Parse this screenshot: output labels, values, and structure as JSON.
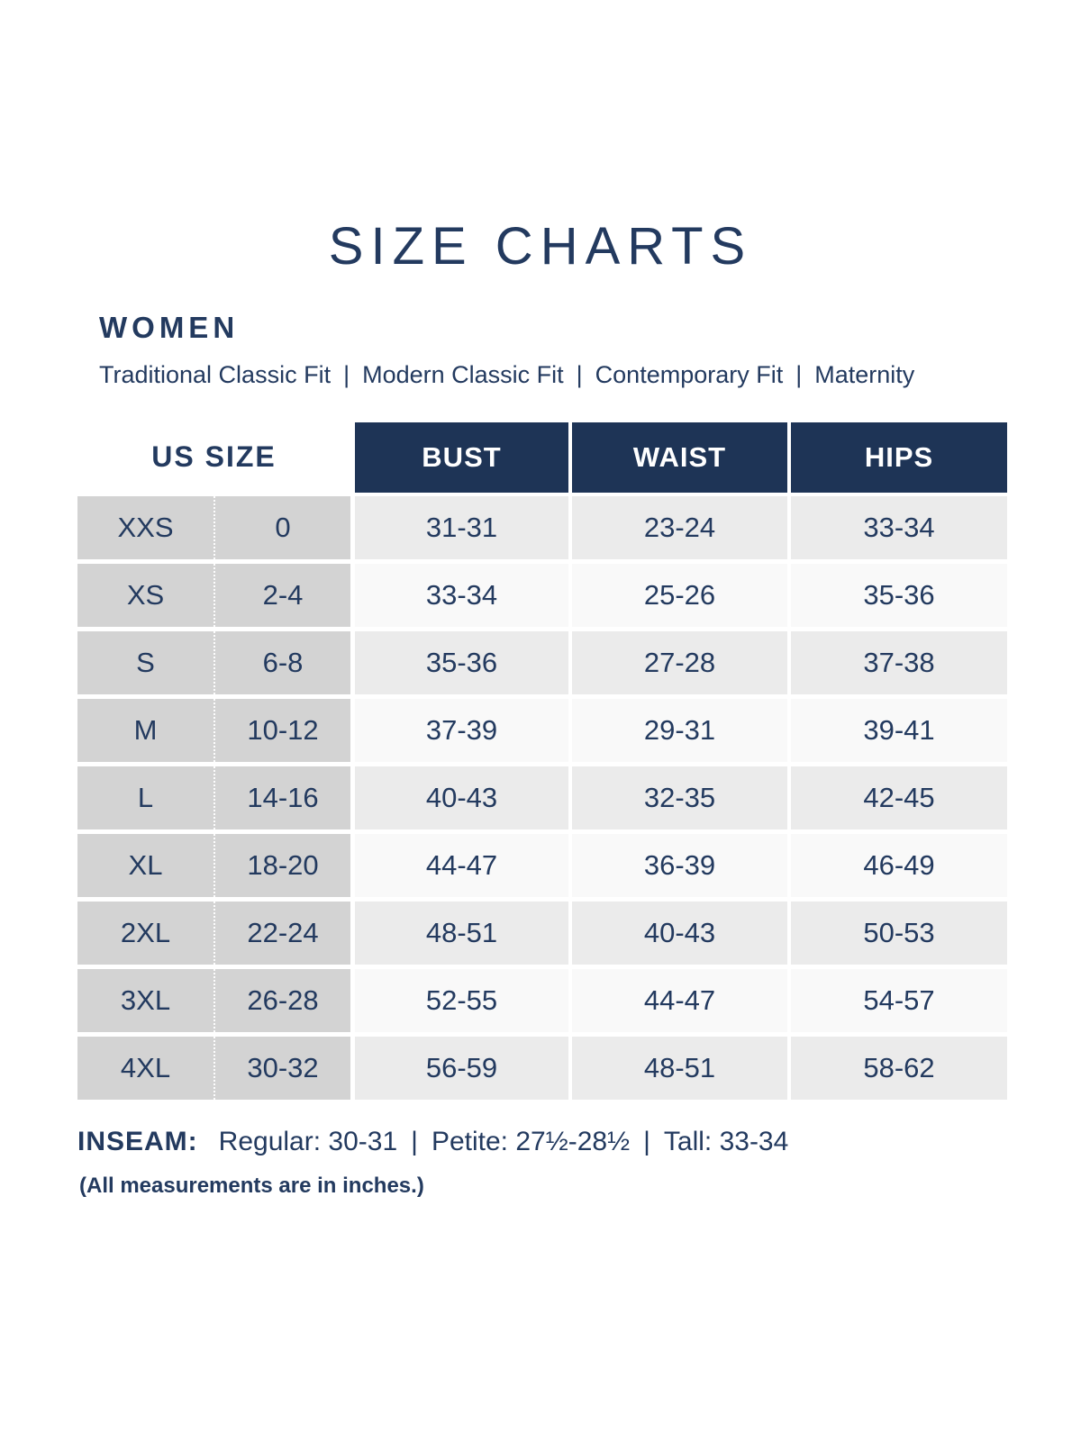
{
  "colors": {
    "navy": "#1e3456",
    "text-navy": "#233a5f",
    "left-gray": "#d3d3d3",
    "row-gray": "#ebebeb",
    "row-light": "#f9f9f9",
    "page-bg": "#ffffff"
  },
  "page": {
    "title": "SIZE CHARTS",
    "section": "WOMEN",
    "note": "(All measurements are in inches.)"
  },
  "separators": {
    "pipe": "|"
  },
  "fit_types": [
    "Traditional Classic Fit",
    "Modern Classic Fit",
    "Contemporary Fit",
    "Maternity"
  ],
  "table": {
    "headers": {
      "us_size": "US SIZE",
      "bust": "BUST",
      "waist": "WAIST",
      "hips": "HIPS"
    },
    "rows": [
      {
        "size": "XXS",
        "us": "0",
        "bust": "31-31",
        "waist": "23-24",
        "hips": "33-34"
      },
      {
        "size": "XS",
        "us": "2-4",
        "bust": "33-34",
        "waist": "25-26",
        "hips": "35-36"
      },
      {
        "size": "S",
        "us": "6-8",
        "bust": "35-36",
        "waist": "27-28",
        "hips": "37-38"
      },
      {
        "size": "M",
        "us": "10-12",
        "bust": "37-39",
        "waist": "29-31",
        "hips": "39-41"
      },
      {
        "size": "L",
        "us": "14-16",
        "bust": "40-43",
        "waist": "32-35",
        "hips": "42-45"
      },
      {
        "size": "XL",
        "us": "18-20",
        "bust": "44-47",
        "waist": "36-39",
        "hips": "46-49"
      },
      {
        "size": "2XL",
        "us": "22-24",
        "bust": "48-51",
        "waist": "40-43",
        "hips": "50-53"
      },
      {
        "size": "3XL",
        "us": "26-28",
        "bust": "52-55",
        "waist": "44-47",
        "hips": "54-57"
      },
      {
        "size": "4XL",
        "us": "30-32",
        "bust": "56-59",
        "waist": "48-51",
        "hips": "58-62"
      }
    ]
  },
  "inseam": {
    "label": "INSEAM:",
    "segments": [
      "Regular: 30-31",
      "Petite: 27½-28½",
      "Tall: 33-34"
    ]
  }
}
